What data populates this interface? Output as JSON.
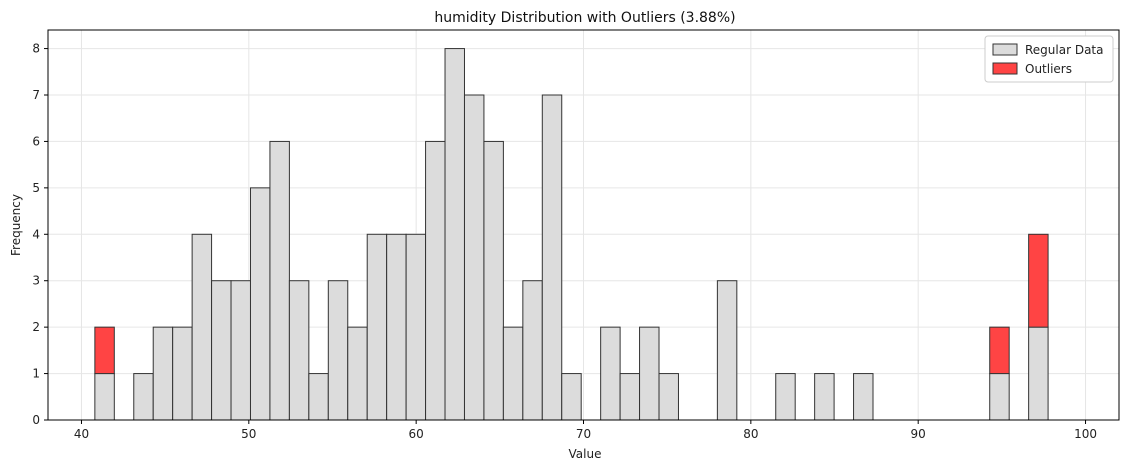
{
  "chart_data": {
    "type": "bar",
    "title": "humidity Distribution with Outliers (3.88%)",
    "xlabel": "Value",
    "ylabel": "Frequency",
    "xlim": [
      38,
      102
    ],
    "ylim": [
      0,
      8.4
    ],
    "xticks": [
      "40",
      "50",
      "60",
      "70",
      "80",
      "90",
      "100"
    ],
    "xtick_values": [
      40,
      50,
      60,
      70,
      80,
      90,
      100
    ],
    "yticks": [
      "0",
      "1",
      "2",
      "3",
      "4",
      "5",
      "6",
      "7",
      "8"
    ],
    "ytick_values": [
      0,
      1,
      2,
      3,
      4,
      5,
      6,
      7,
      8
    ],
    "grid": true,
    "legend_position": "top-right",
    "bin_start": 40.8,
    "bin_width": 1.1625,
    "series": [
      {
        "name": "Regular Data",
        "color": "#dcdcdc",
        "values": [
          1,
          0,
          1,
          2,
          2,
          4,
          3,
          3,
          5,
          6,
          3,
          1,
          3,
          2,
          4,
          4,
          4,
          6,
          8,
          7,
          6,
          2,
          3,
          7,
          1,
          0,
          2,
          1,
          2,
          1,
          0,
          0,
          3,
          0,
          0,
          1,
          0,
          1,
          0,
          1,
          0,
          0,
          0,
          0,
          0,
          0,
          1,
          0,
          2,
          0
        ]
      },
      {
        "name": "Outliers",
        "color": "#ff4444",
        "values": [
          1,
          0,
          0,
          0,
          0,
          0,
          0,
          0,
          0,
          0,
          0,
          0,
          0,
          0,
          0,
          0,
          0,
          0,
          0,
          0,
          0,
          0,
          0,
          0,
          0,
          0,
          0,
          0,
          0,
          0,
          0,
          0,
          0,
          0,
          0,
          0,
          0,
          0,
          0,
          0,
          0,
          0,
          0,
          0,
          0,
          0,
          1,
          0,
          2,
          0
        ]
      }
    ]
  }
}
